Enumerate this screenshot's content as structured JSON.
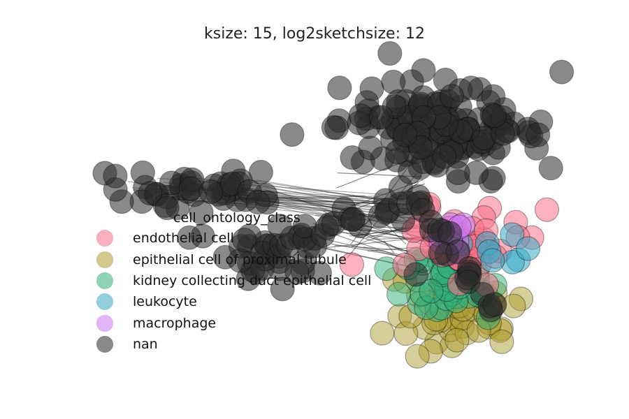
{
  "chart_data": {
    "type": "scatter",
    "title": "ksize: 15, log2sketchsize: 12",
    "legend": {
      "title": "cell_ontology_class",
      "placement": "center-left",
      "entries": [
        {
          "label": "endothelial cell",
          "color": "#f77189"
        },
        {
          "label": "epithelial cell of proximal tubule",
          "color": "#ae9d31"
        },
        {
          "label": "kidney collecting duct epithelial cell",
          "color": "#33b07a"
        },
        {
          "label": "leukocyte",
          "color": "#38a9c5"
        },
        {
          "label": "macrophage",
          "color": "#cc79f4"
        },
        {
          "label": "nan",
          "color": "#2a2a2a"
        }
      ]
    },
    "axes_visible": false,
    "grid": false
  }
}
